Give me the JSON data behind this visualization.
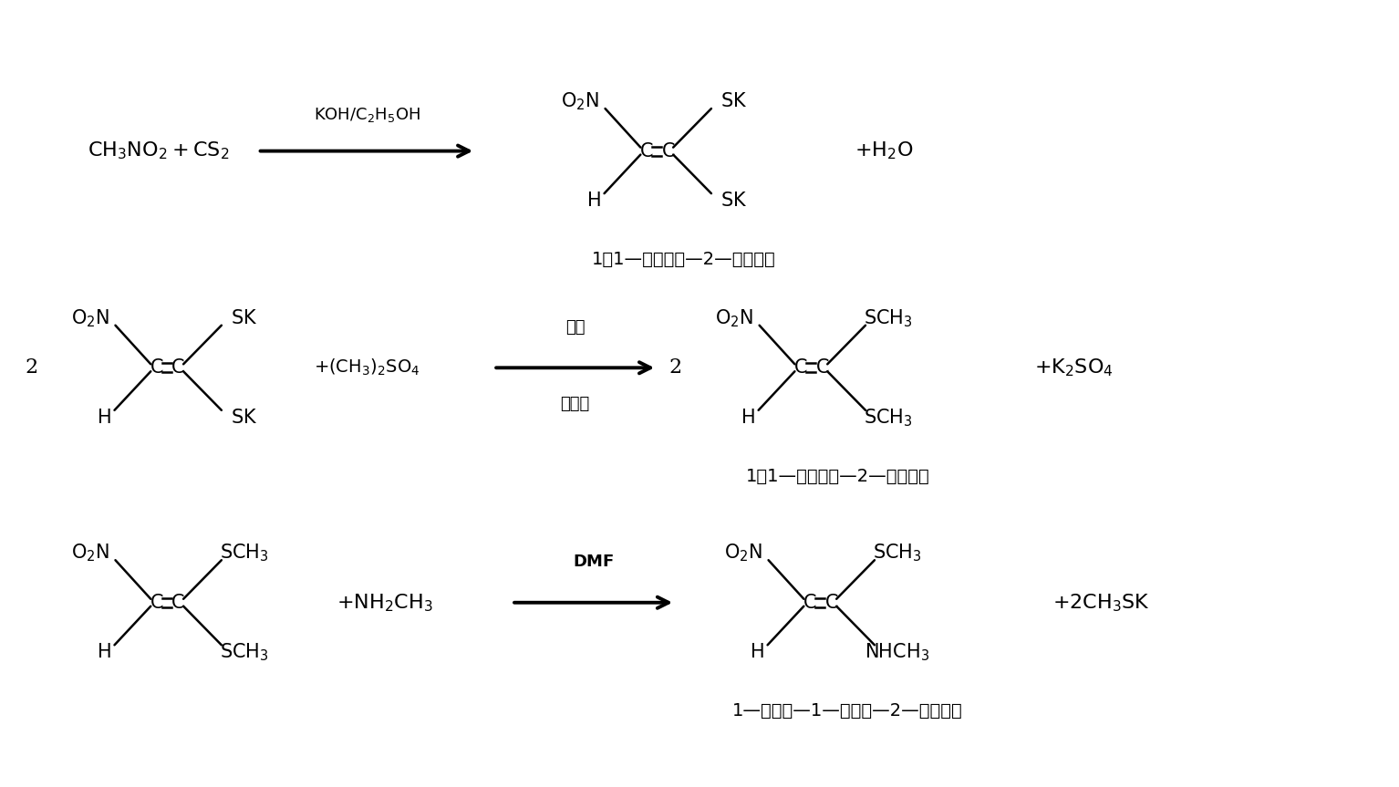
{
  "bg_color": "#ffffff",
  "text_color": "#000000",
  "fig_width": 15.34,
  "fig_height": 8.63,
  "r1_label": "1，1—二钒硫基—2—硫基乙烯",
  "r2_label": "1，1—二甲硫基—2—硫基乙烯",
  "r3_label": "1—甲胺基—1—甲硫基—2—硫基乙烯",
  "r2_cond1": "甲醇",
  "r2_cond2": "或乙醇"
}
